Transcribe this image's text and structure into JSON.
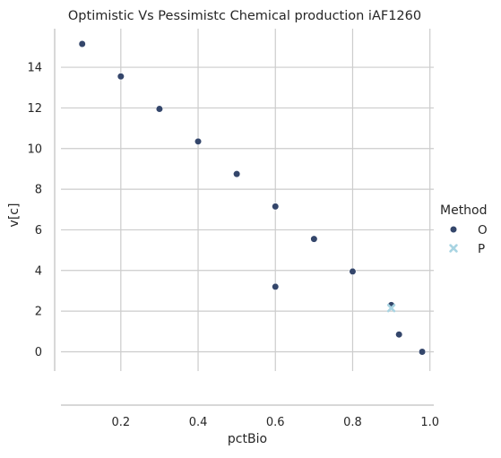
{
  "chart_data": {
    "type": "scatter",
    "title": "Optimistic Vs Pessimistc Chemical production iAF1260",
    "xlabel": "pctBio",
    "ylabel": "v[c]",
    "xlim": [
      0.045,
      1.01
    ],
    "ylim": [
      -0.95,
      15.9
    ],
    "xticks": [
      0.2,
      0.4,
      0.6,
      0.8,
      1.0
    ],
    "xtick_labels": [
      "0.2",
      "0.4",
      "0.6",
      "0.8",
      "1.0"
    ],
    "yticks": [
      0,
      2,
      4,
      6,
      8,
      10,
      12,
      14
    ],
    "ytick_labels": [
      "0",
      "2",
      "4",
      "6",
      "8",
      "10",
      "12",
      "14"
    ],
    "grid": true,
    "legend": {
      "title": "Method",
      "placement": "right"
    },
    "series": [
      {
        "name": "O",
        "marker": "circle",
        "color": "#34466b",
        "points": [
          [
            0.1,
            15.15
          ],
          [
            0.2,
            13.55
          ],
          [
            0.3,
            11.95
          ],
          [
            0.4,
            10.35
          ],
          [
            0.5,
            8.75
          ],
          [
            0.6,
            7.15
          ],
          [
            0.7,
            5.55
          ],
          [
            0.8,
            3.95
          ],
          [
            0.6,
            3.2
          ],
          [
            0.9,
            2.3
          ],
          [
            0.92,
            0.85
          ],
          [
            0.98,
            0.0
          ]
        ]
      },
      {
        "name": "P",
        "marker": "x",
        "color": "#a8d4e2",
        "points": [
          [
            0.9,
            2.15
          ]
        ]
      }
    ]
  }
}
